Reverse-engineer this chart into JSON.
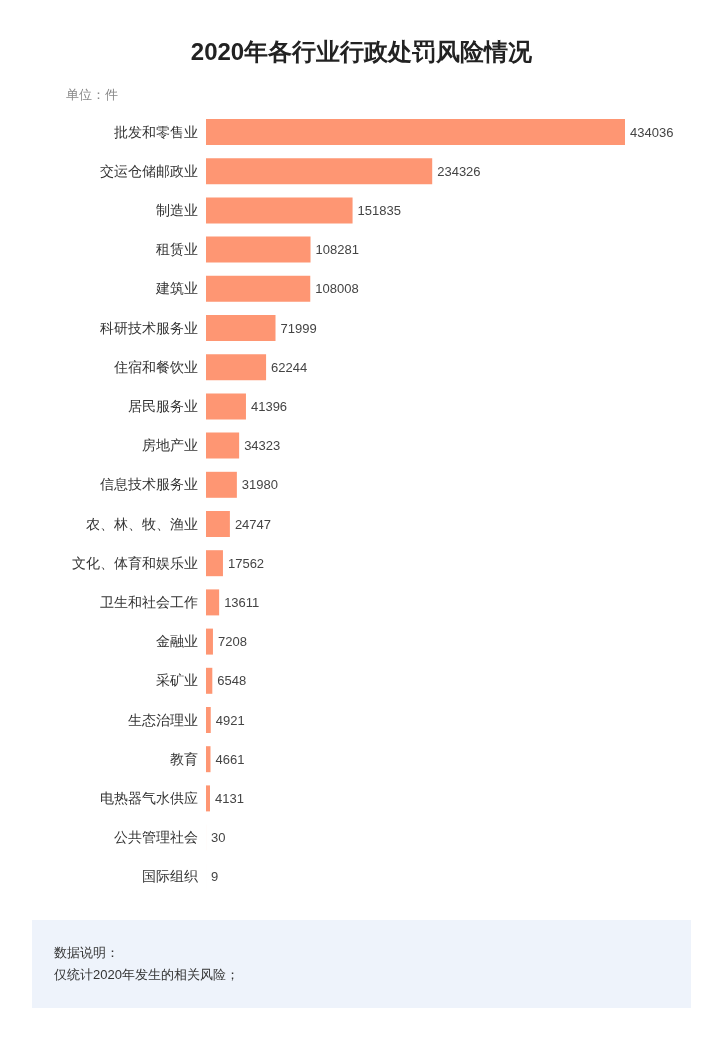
{
  "chart_data": {
    "type": "bar",
    "orientation": "horizontal",
    "title": "2020年各行业行政处罚风险情况",
    "subtitle": "单位：件",
    "categories": [
      "批发和零售业",
      "交运仓储邮政业",
      "制造业",
      "租赁业",
      "建筑业",
      "科研技术服务业",
      "住宿和餐饮业",
      "居民服务业",
      "房地产业",
      "信息技术服务业",
      "农、林、牧、渔业",
      "文化、体育和娱乐业",
      "卫生和社会工作",
      "金融业",
      "采矿业",
      "生态治理业",
      "教育",
      "电热器气水供应",
      "公共管理社会",
      "国际组织"
    ],
    "values": [
      434036,
      234326,
      151835,
      108281,
      108008,
      71999,
      62244,
      41396,
      34323,
      31980,
      24747,
      17562,
      13611,
      7208,
      6548,
      4921,
      4661,
      4131,
      30,
      9
    ],
    "color": "#fe9673",
    "data_labels": true,
    "annotations": [
      "数据说明：",
      "仅统计2020年发生的相关风险；"
    ]
  }
}
